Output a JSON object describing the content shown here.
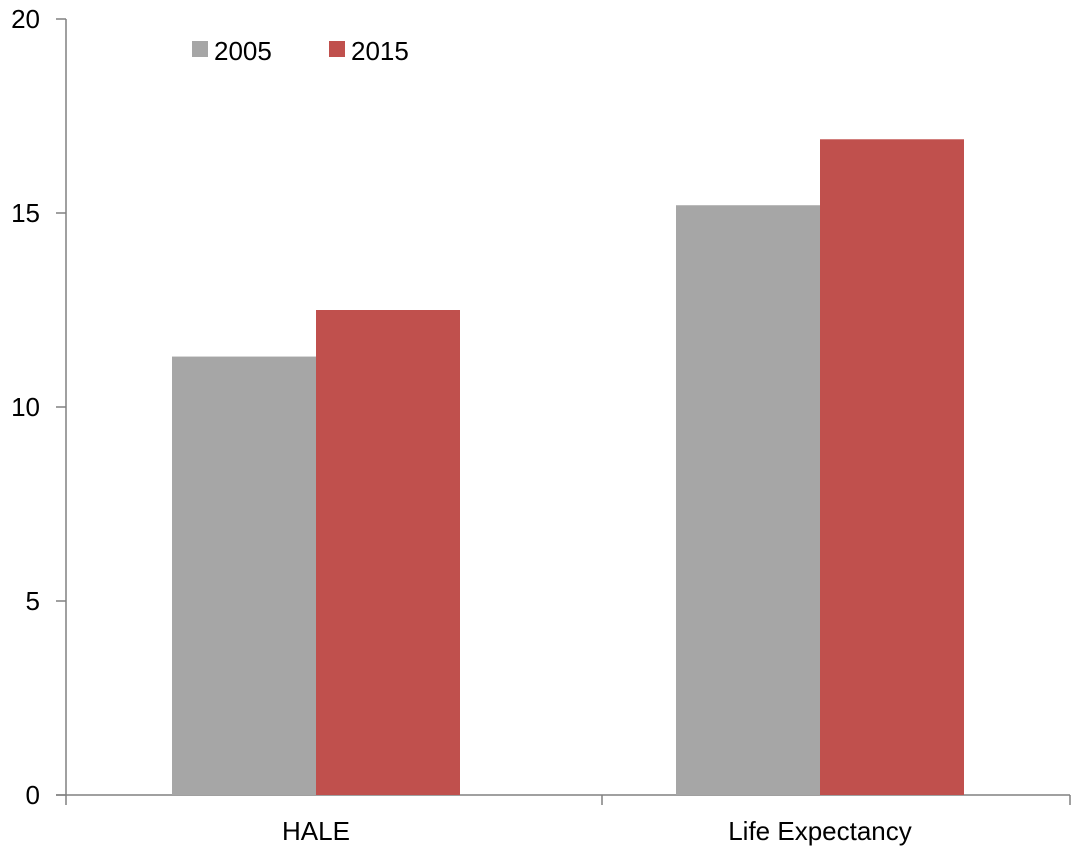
{
  "chart_data": {
    "type": "bar",
    "title": "",
    "xlabel": "",
    "ylabel": "",
    "categories": [
      "HALE",
      "Life Expectancy"
    ],
    "series": [
      {
        "name": "2005",
        "values": [
          11.3,
          15.2
        ],
        "color": "#a6a6a6"
      },
      {
        "name": "2015",
        "values": [
          12.5,
          16.9
        ],
        "color": "#c0504d"
      }
    ],
    "ylim": [
      0,
      20
    ],
    "yticks": [
      0,
      5,
      10,
      15,
      20
    ],
    "ytick_labels": [
      "0",
      "5",
      "10",
      "15",
      "20"
    ],
    "grid": false,
    "legend_position": "top-left"
  }
}
